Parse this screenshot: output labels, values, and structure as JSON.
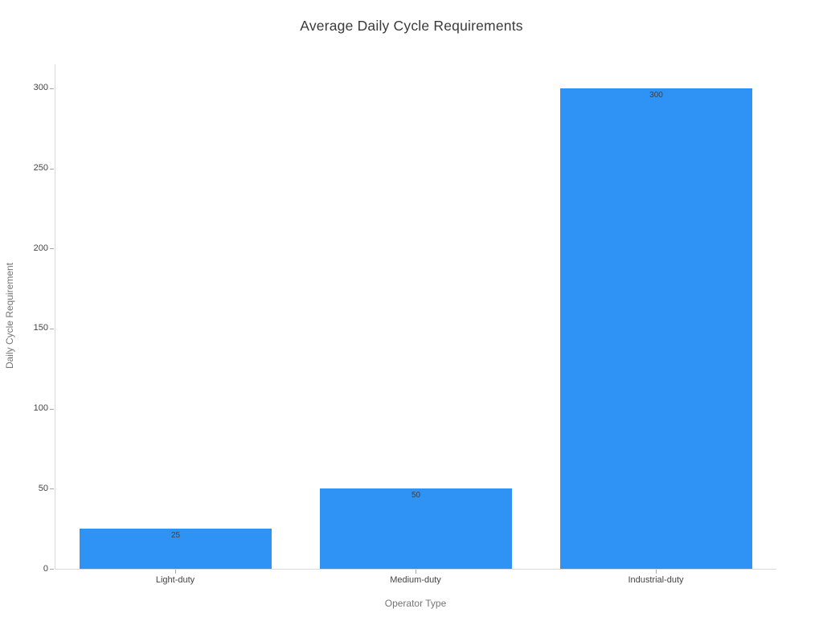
{
  "chart_data": {
    "type": "bar",
    "title": "Average Daily Cycle Requirements",
    "xlabel": "Operator Type",
    "ylabel": "Daily Cycle Requirement",
    "categories": [
      "Light-duty",
      "Medium-duty",
      "Industrial-duty"
    ],
    "values": [
      25,
      50,
      300
    ],
    "value_labels": [
      "25",
      "50",
      "300"
    ],
    "yticks": [
      0,
      50,
      100,
      150,
      200,
      250,
      300
    ],
    "ylim": [
      0,
      315
    ],
    "grid": false,
    "legend_position": "none",
    "colors": {
      "bar": "#2e93f5",
      "title": "#3a3a3a",
      "axis_title": "#757575",
      "tick_label": "#444444",
      "axis_line": "#d9d9d9",
      "tick_mark": "#a8a8a8",
      "value_label": "#3c4148",
      "background": "#ffffff"
    }
  }
}
